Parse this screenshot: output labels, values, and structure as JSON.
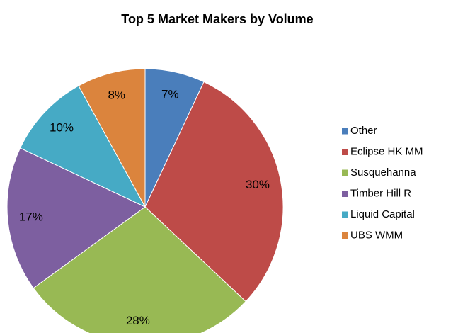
{
  "chart_data": {
    "type": "pie",
    "title": "Top 5 Market Makers by Volume",
    "categories": [
      "Other",
      "Eclipse HK MM",
      "Susquehanna",
      "Timber Hill R",
      "Liquid Capital",
      "UBS WMM"
    ],
    "values": [
      7,
      30,
      28,
      17,
      10,
      8
    ],
    "value_labels": [
      "7%",
      "30%",
      "28%",
      "17%",
      "10%",
      "8%"
    ],
    "colors": [
      "#4a7ebb",
      "#be4b48",
      "#98b954",
      "#7d5fa0",
      "#46aac5",
      "#db843d"
    ],
    "legend": "right"
  }
}
